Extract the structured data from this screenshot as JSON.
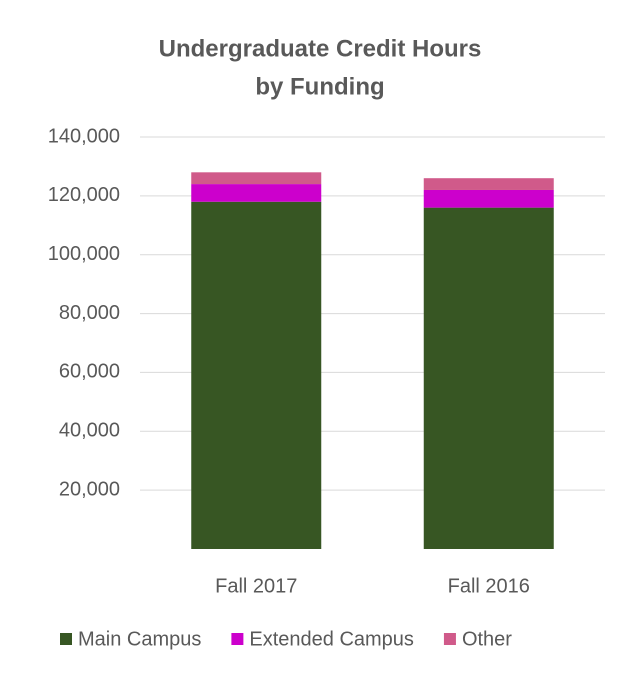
{
  "chart_data": {
    "type": "stacked_bar",
    "title": [
      "Undergraduate Credit Hours",
      "by Funding"
    ],
    "categories": [
      "Fall 2017",
      "Fall 2016"
    ],
    "series": [
      {
        "name": "Main Campus",
        "color": "#375623",
        "values": [
          118000,
          116000
        ]
      },
      {
        "name": "Extended Campus",
        "color": "#cc00cc",
        "values": [
          6000,
          6000
        ]
      },
      {
        "name": "Other",
        "color": "#d05a8a",
        "values": [
          4000,
          4000
        ]
      }
    ],
    "ylim": [
      0,
      140000
    ],
    "yticks": [
      {
        "value": 20000,
        "label": "20,000"
      },
      {
        "value": 40000,
        "label": "40,000"
      },
      {
        "value": 60000,
        "label": "60,000"
      },
      {
        "value": 80000,
        "label": "80,000"
      },
      {
        "value": 100000,
        "label": "100,000"
      },
      {
        "value": 120000,
        "label": "120,000"
      },
      {
        "value": 140000,
        "label": "140,000"
      }
    ],
    "grid": true
  }
}
